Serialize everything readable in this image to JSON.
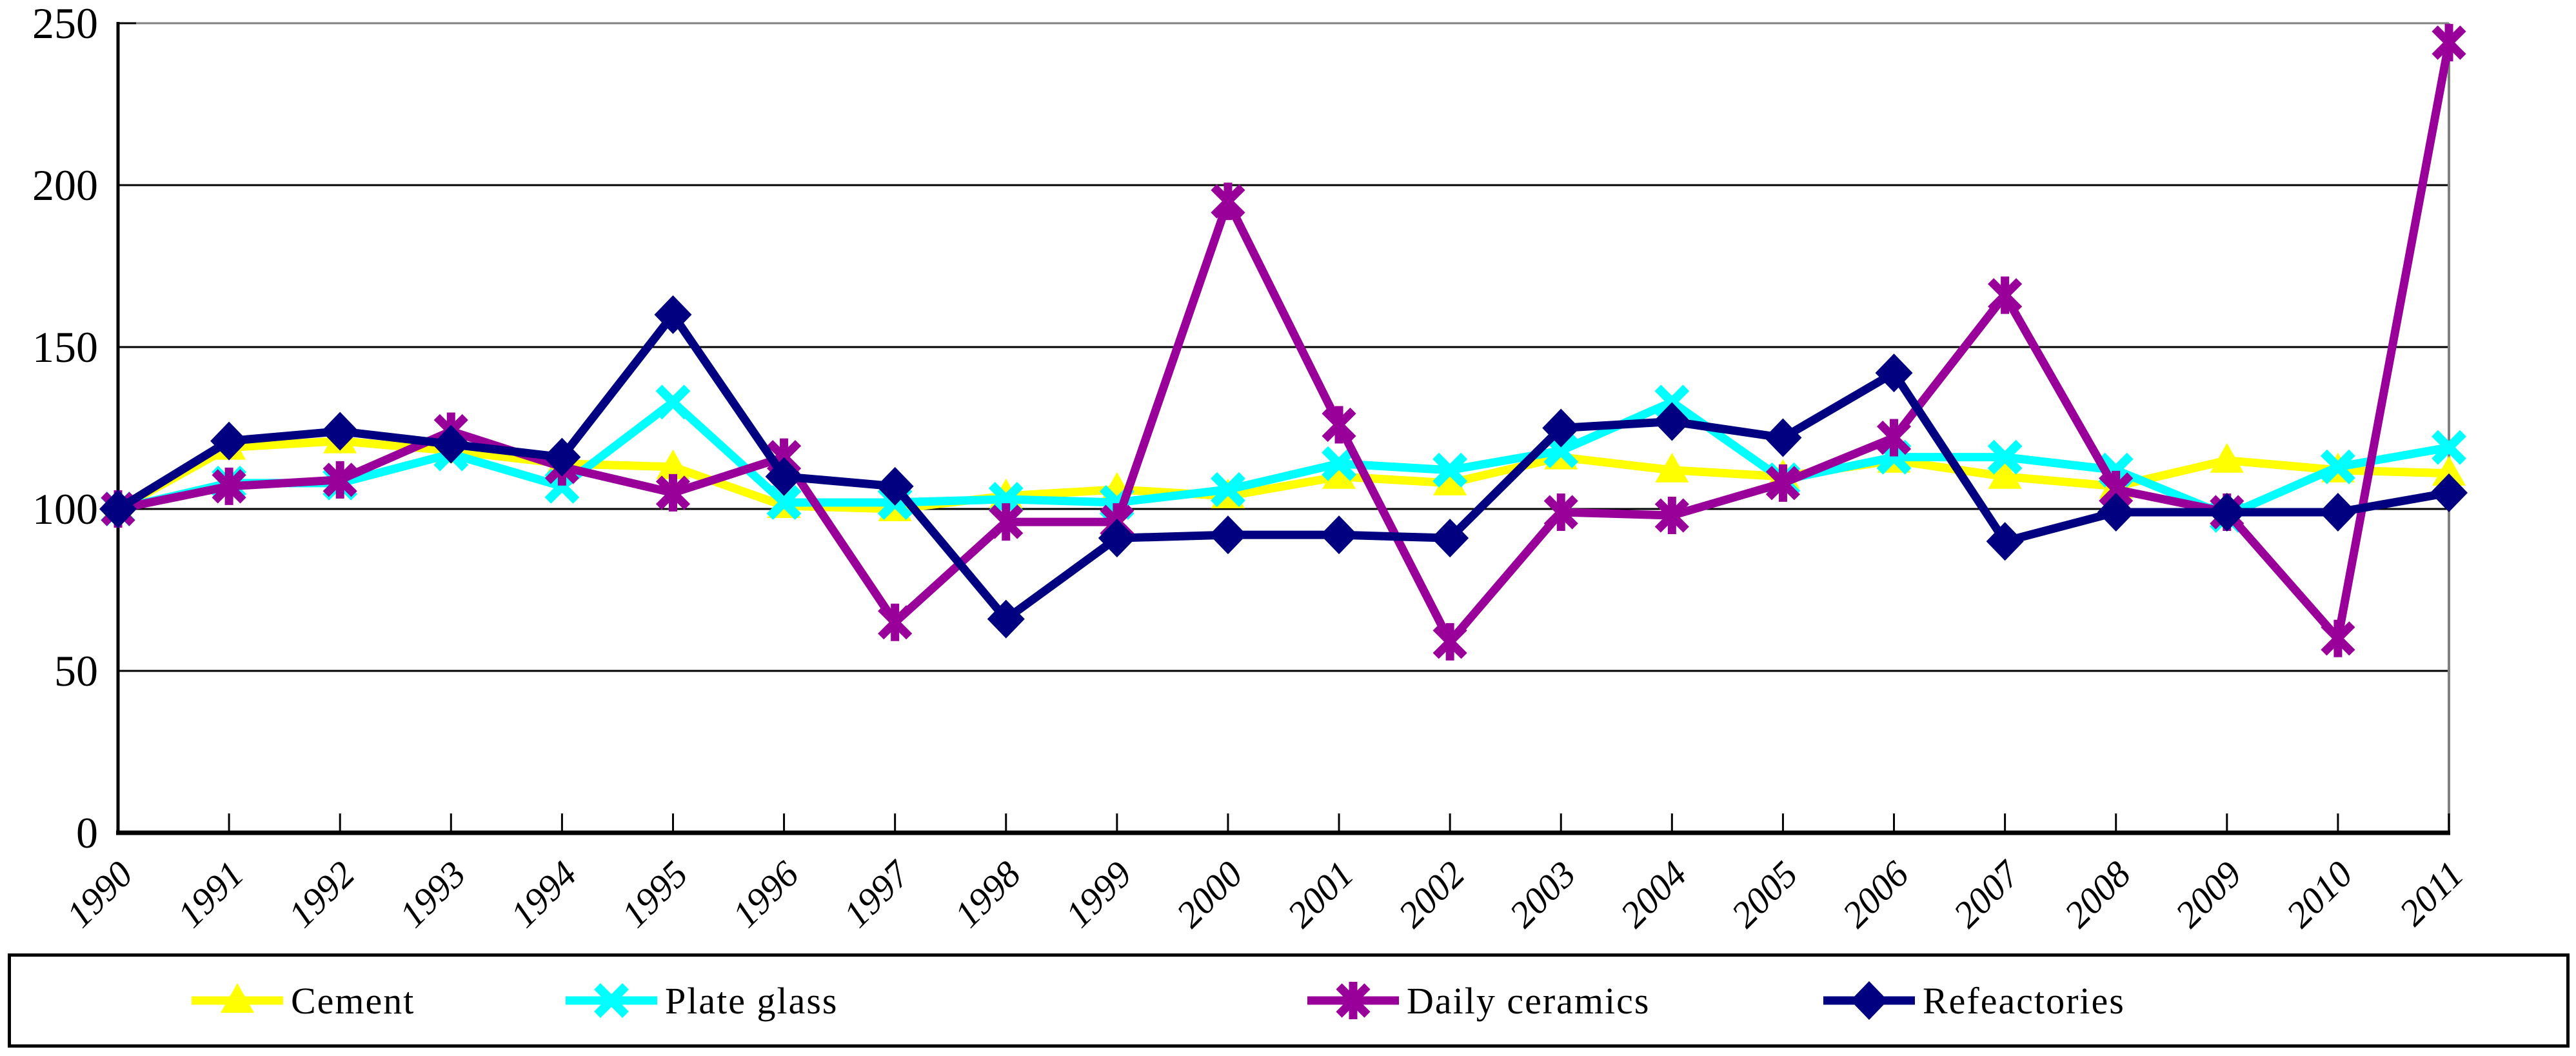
{
  "chart_data": {
    "type": "line",
    "title": "",
    "x": [
      "1990",
      "1991",
      "1992",
      "1993",
      "1994",
      "1995",
      "1996",
      "1997",
      "1998",
      "1999",
      "2000",
      "2001",
      "2002",
      "2003",
      "2004",
      "2005",
      "2006",
      "2007",
      "2008",
      "2009",
      "2010",
      "2011"
    ],
    "ylim": [
      0,
      250
    ],
    "yticks": [
      0,
      50,
      100,
      150,
      200,
      250
    ],
    "grid": "horizontal",
    "legend_position": "bottom",
    "series": [
      {
        "name": "Cement",
        "color": "#FFFF00",
        "marker": "triangle",
        "values": [
          100,
          119,
          121,
          118,
          114,
          113,
          101,
          100,
          104,
          106,
          104,
          110,
          108,
          116,
          112,
          110,
          115,
          110,
          107,
          115,
          112,
          111
        ]
      },
      {
        "name": "Plate glass",
        "color": "#00FFFF",
        "marker": "x",
        "values": [
          100,
          108,
          108,
          117,
          107,
          133,
          102,
          102,
          103,
          102,
          106,
          114,
          112,
          118,
          133,
          109,
          116,
          116,
          112,
          98,
          113,
          119
        ]
      },
      {
        "name": "Daily ceramics",
        "color": "#990099",
        "marker": "asterisk",
        "values": [
          100,
          107,
          109,
          124,
          113,
          105,
          116,
          65,
          96,
          96,
          195,
          126,
          59,
          99,
          98,
          108,
          122,
          166,
          106,
          99,
          60,
          244
        ]
      },
      {
        "name": "Refeactories",
        "color": "#000080",
        "marker": "diamond",
        "values": [
          100,
          121,
          124,
          120,
          116,
          160,
          110,
          107,
          66,
          91,
          92,
          92,
          91,
          125,
          127,
          122,
          142,
          90,
          99,
          99,
          99,
          105
        ]
      }
    ],
    "style": {
      "grid_color": "#000000",
      "axis_color": "#000000",
      "border_gray": "#808080",
      "background": "#FFFFFF"
    }
  }
}
